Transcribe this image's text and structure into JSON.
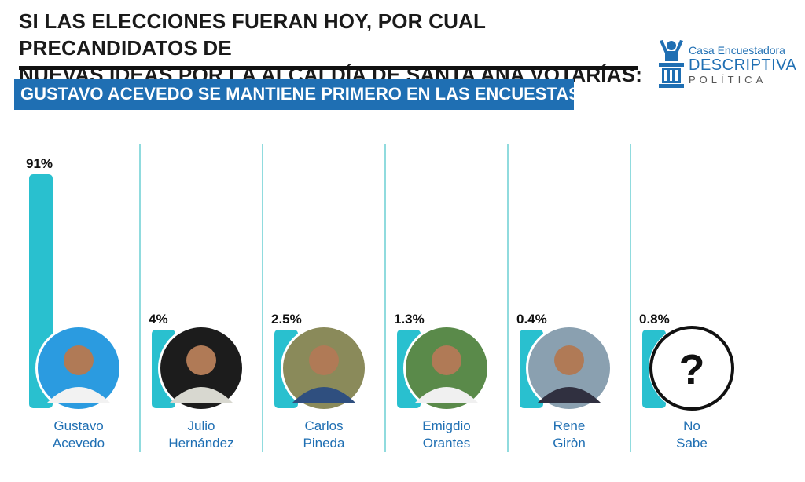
{
  "header": {
    "title_line1": "SI LAS ELECCIONES FUERAN HOY, POR CUAL PRECANDIDATOS DE",
    "title_line2": "NUEVAS IDEAS POR LA ALCALDÍA DE SANTA ANA VOTARÍAS:",
    "subtitle": "GUSTAVO ACEVEDO SE MANTIENE PRIMERO EN LAS ENCUESTAS"
  },
  "logo": {
    "line1": "Casa Encuestadora",
    "line2": "DESCRIPTIVA",
    "line3": "POLÍTICA"
  },
  "colors": {
    "bar": "#29c0cf",
    "divider": "#46c3c8",
    "subtitle_bg": "#1f6fb3",
    "label": "#1f6fb3"
  },
  "chart_data": {
    "type": "bar",
    "categories": [
      [
        "Gustavo",
        "Acevedo"
      ],
      [
        "Julio",
        "Hernández"
      ],
      [
        "Carlos",
        "Pineda"
      ],
      [
        "Emigdio",
        "Orantes"
      ],
      [
        "Rene",
        "Giròn"
      ],
      [
        "No",
        "Sabe"
      ]
    ],
    "values": [
      91,
      4,
      2.5,
      1.3,
      0.4,
      0.8
    ],
    "value_labels": [
      "91%",
      "4%",
      "2.5%",
      "1.3%",
      "0.4%",
      "0.8%"
    ],
    "unknown_symbol": "?",
    "ylim": [
      0,
      91
    ],
    "grid": false,
    "legend": "none"
  }
}
